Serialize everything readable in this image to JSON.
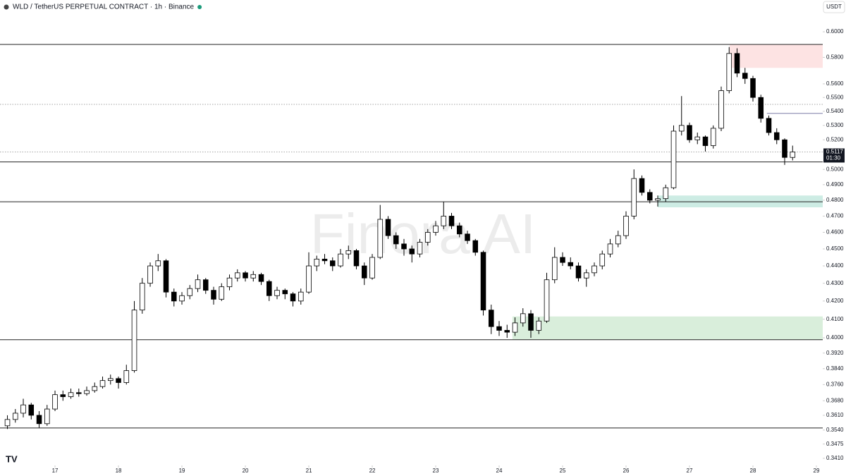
{
  "chart_data": {
    "type": "candlestick",
    "title": "WLD / TetherUS PERPETUAL CONTRACT · 1h · Binance",
    "currency": "USDT",
    "watermark": "Finora AI",
    "log_scale": true,
    "xlim": [
      16.133,
      29.1
    ],
    "xticks": [
      17,
      18,
      19,
      20,
      21,
      22,
      23,
      24,
      25,
      26,
      27,
      28,
      29
    ],
    "ylim": [
      0.3378,
      0.6258
    ],
    "yticks": [
      {
        "value": 0.6,
        "label": "0.6000"
      },
      {
        "value": 0.58,
        "label": "0.5800"
      },
      {
        "value": 0.56,
        "label": "0.5600"
      },
      {
        "value": 0.55,
        "label": "0.5500"
      },
      {
        "value": 0.54,
        "label": "0.5400"
      },
      {
        "value": 0.53,
        "label": "0.5300"
      },
      {
        "value": 0.52,
        "label": "0.5200"
      },
      {
        "value": 0.5,
        "label": "0.5000"
      },
      {
        "value": 0.49,
        "label": "0.4900"
      },
      {
        "value": 0.48,
        "label": "0.4800"
      },
      {
        "value": 0.47,
        "label": "0.4700"
      },
      {
        "value": 0.46,
        "label": "0.4600"
      },
      {
        "value": 0.45,
        "label": "0.4500"
      },
      {
        "value": 0.44,
        "label": "0.4400"
      },
      {
        "value": 0.43,
        "label": "0.4300"
      },
      {
        "value": 0.42,
        "label": "0.4200"
      },
      {
        "value": 0.41,
        "label": "0.4100"
      },
      {
        "value": 0.4,
        "label": "0.4000"
      },
      {
        "value": 0.392,
        "label": "0.3920"
      },
      {
        "value": 0.384,
        "label": "0.3840"
      },
      {
        "value": 0.376,
        "label": "0.3760"
      },
      {
        "value": 0.368,
        "label": "0.3680"
      },
      {
        "value": 0.361,
        "label": "0.3610"
      },
      {
        "value": 0.354,
        "label": "0.3540"
      },
      {
        "value": 0.3475,
        "label": "0.3475"
      },
      {
        "value": 0.341,
        "label": "0.3410"
      }
    ],
    "last_price": 0.5117,
    "countdown": "01:30",
    "up_color": "#ffffff",
    "down_color": "#000000",
    "levels": [
      0.59,
      0.505,
      0.479,
      0.399,
      0.355
    ],
    "dotted_levels": [
      0.545,
      0.5117
    ],
    "short_levels": [
      {
        "x": 28.22,
        "y": 0.5385
      }
    ],
    "zones": [
      {
        "x": 27.633,
        "y": [
          0.572,
          0.59
        ],
        "color": "#fde3e3"
      },
      {
        "x": 26.5,
        "y": [
          0.4755,
          0.483
        ],
        "color": "#cdece4"
      },
      {
        "x": 24.21,
        "y": [
          0.399,
          0.4115
        ],
        "color": "#d9eedb"
      }
    ],
    "x": [
      16.25,
      16.375,
      16.5,
      16.625,
      16.75,
      16.875,
      17,
      17.125,
      17.25,
      17.375,
      17.5,
      17.625,
      17.75,
      17.875,
      18,
      18.125,
      18.25,
      18.375,
      18.5,
      18.625,
      18.75,
      18.875,
      19,
      19.125,
      19.25,
      19.375,
      19.5,
      19.625,
      19.75,
      19.875,
      20,
      20.125,
      20.25,
      20.375,
      20.5,
      20.625,
      20.75,
      20.875,
      21,
      21.125,
      21.25,
      21.375,
      21.5,
      21.625,
      21.75,
      21.875,
      22,
      22.125,
      22.25,
      22.375,
      22.5,
      22.625,
      22.75,
      22.875,
      23,
      23.125,
      23.25,
      23.375,
      23.5,
      23.625,
      23.75,
      23.875,
      24,
      24.125,
      24.25,
      24.375,
      24.5,
      24.625,
      24.75,
      24.875,
      25,
      25.125,
      25.25,
      25.375,
      25.5,
      25.625,
      25.75,
      25.875,
      26,
      26.125,
      26.25,
      26.375,
      26.5,
      26.625,
      26.75,
      26.875,
      27,
      27.125,
      27.25,
      27.375,
      27.5,
      27.625,
      27.75,
      27.875,
      28,
      28.125,
      28.25,
      28.375,
      28.5,
      28.625
    ],
    "candles": [
      [
        0.356,
        0.361,
        0.3545,
        0.359
      ],
      [
        0.359,
        0.364,
        0.3575,
        0.362
      ],
      [
        0.362,
        0.369,
        0.36,
        0.366
      ],
      [
        0.366,
        0.367,
        0.359,
        0.361
      ],
      [
        0.361,
        0.363,
        0.355,
        0.357
      ],
      [
        0.357,
        0.366,
        0.356,
        0.364
      ],
      [
        0.364,
        0.373,
        0.363,
        0.371
      ],
      [
        0.371,
        0.373,
        0.368,
        0.37
      ],
      [
        0.37,
        0.374,
        0.369,
        0.372
      ],
      [
        0.372,
        0.374,
        0.37,
        0.3715
      ],
      [
        0.3715,
        0.375,
        0.3705,
        0.373
      ],
      [
        0.373,
        0.377,
        0.372,
        0.375
      ],
      [
        0.375,
        0.38,
        0.374,
        0.378
      ],
      [
        0.378,
        0.381,
        0.376,
        0.379
      ],
      [
        0.379,
        0.38,
        0.374,
        0.377
      ],
      [
        0.377,
        0.386,
        0.376,
        0.383
      ],
      [
        0.383,
        0.42,
        0.382,
        0.415
      ],
      [
        0.415,
        0.433,
        0.413,
        0.43
      ],
      [
        0.43,
        0.442,
        0.428,
        0.44
      ],
      [
        0.44,
        0.447,
        0.437,
        0.443
      ],
      [
        0.443,
        0.444,
        0.422,
        0.425
      ],
      [
        0.425,
        0.427,
        0.417,
        0.42
      ],
      [
        0.42,
        0.425,
        0.418,
        0.423
      ],
      [
        0.423,
        0.429,
        0.421,
        0.427
      ],
      [
        0.427,
        0.435,
        0.425,
        0.432
      ],
      [
        0.432,
        0.433,
        0.424,
        0.426
      ],
      [
        0.426,
        0.428,
        0.418,
        0.421
      ],
      [
        0.421,
        0.43,
        0.42,
        0.428
      ],
      [
        0.428,
        0.435,
        0.426,
        0.433
      ],
      [
        0.433,
        0.438,
        0.431,
        0.436
      ],
      [
        0.436,
        0.437,
        0.431,
        0.433
      ],
      [
        0.433,
        0.437,
        0.431,
        0.435
      ],
      [
        0.435,
        0.436,
        0.429,
        0.431
      ],
      [
        0.431,
        0.432,
        0.42,
        0.423
      ],
      [
        0.423,
        0.428,
        0.421,
        0.426
      ],
      [
        0.426,
        0.427,
        0.421,
        0.424
      ],
      [
        0.424,
        0.425,
        0.417,
        0.42
      ],
      [
        0.42,
        0.427,
        0.418,
        0.425
      ],
      [
        0.425,
        0.448,
        0.424,
        0.44
      ],
      [
        0.44,
        0.446,
        0.437,
        0.444
      ],
      [
        0.444,
        0.447,
        0.441,
        0.443
      ],
      [
        0.443,
        0.445,
        0.437,
        0.44
      ],
      [
        0.44,
        0.45,
        0.439,
        0.447
      ],
      [
        0.447,
        0.452,
        0.444,
        0.449
      ],
      [
        0.449,
        0.45,
        0.438,
        0.44
      ],
      [
        0.44,
        0.442,
        0.429,
        0.433
      ],
      [
        0.433,
        0.447,
        0.432,
        0.445
      ],
      [
        0.445,
        0.477,
        0.444,
        0.468
      ],
      [
        0.468,
        0.47,
        0.456,
        0.458
      ],
      [
        0.458,
        0.46,
        0.45,
        0.453
      ],
      [
        0.453,
        0.456,
        0.446,
        0.45
      ],
      [
        0.45,
        0.452,
        0.442,
        0.447
      ],
      [
        0.447,
        0.456,
        0.445,
        0.454
      ],
      [
        0.454,
        0.462,
        0.452,
        0.46
      ],
      [
        0.46,
        0.467,
        0.458,
        0.464
      ],
      [
        0.464,
        0.479,
        0.462,
        0.47
      ],
      [
        0.47,
        0.472,
        0.462,
        0.464
      ],
      [
        0.464,
        0.466,
        0.457,
        0.459
      ],
      [
        0.459,
        0.461,
        0.453,
        0.455
      ],
      [
        0.455,
        0.456,
        0.446,
        0.448
      ],
      [
        0.448,
        0.449,
        0.412,
        0.415
      ],
      [
        0.415,
        0.418,
        0.402,
        0.406
      ],
      [
        0.406,
        0.409,
        0.401,
        0.404
      ],
      [
        0.404,
        0.407,
        0.4,
        0.403
      ],
      [
        0.403,
        0.411,
        0.401,
        0.408
      ],
      [
        0.408,
        0.416,
        0.406,
        0.413
      ],
      [
        0.413,
        0.415,
        0.4,
        0.404
      ],
      [
        0.404,
        0.411,
        0.402,
        0.409
      ],
      [
        0.409,
        0.436,
        0.408,
        0.432
      ],
      [
        0.432,
        0.451,
        0.43,
        0.445
      ],
      [
        0.445,
        0.448,
        0.44,
        0.442
      ],
      [
        0.442,
        0.445,
        0.438,
        0.44
      ],
      [
        0.44,
        0.442,
        0.431,
        0.433
      ],
      [
        0.433,
        0.438,
        0.428,
        0.436
      ],
      [
        0.436,
        0.442,
        0.434,
        0.44
      ],
      [
        0.44,
        0.449,
        0.438,
        0.447
      ],
      [
        0.447,
        0.456,
        0.445,
        0.453
      ],
      [
        0.453,
        0.461,
        0.451,
        0.458
      ],
      [
        0.458,
        0.473,
        0.456,
        0.47
      ],
      [
        0.47,
        0.5,
        0.468,
        0.494
      ],
      [
        0.494,
        0.496,
        0.483,
        0.485
      ],
      [
        0.485,
        0.487,
        0.478,
        0.48
      ],
      [
        0.48,
        0.483,
        0.476,
        0.481
      ],
      [
        0.481,
        0.49,
        0.479,
        0.488
      ],
      [
        0.488,
        0.53,
        0.487,
        0.526
      ],
      [
        0.526,
        0.551,
        0.523,
        0.53
      ],
      [
        0.53,
        0.532,
        0.518,
        0.52
      ],
      [
        0.52,
        0.525,
        0.517,
        0.522
      ],
      [
        0.522,
        0.523,
        0.512,
        0.516
      ],
      [
        0.516,
        0.53,
        0.514,
        0.528
      ],
      [
        0.528,
        0.558,
        0.526,
        0.555
      ],
      [
        0.555,
        0.588,
        0.553,
        0.583
      ],
      [
        0.583,
        0.587,
        0.565,
        0.568
      ],
      [
        0.568,
        0.572,
        0.56,
        0.564
      ],
      [
        0.564,
        0.566,
        0.547,
        0.55
      ],
      [
        0.55,
        0.552,
        0.532,
        0.535
      ],
      [
        0.535,
        0.537,
        0.523,
        0.525
      ],
      [
        0.525,
        0.528,
        0.517,
        0.52
      ],
      [
        0.52,
        0.521,
        0.503,
        0.508
      ],
      [
        0.508,
        0.516,
        0.506,
        0.5117
      ]
    ]
  }
}
